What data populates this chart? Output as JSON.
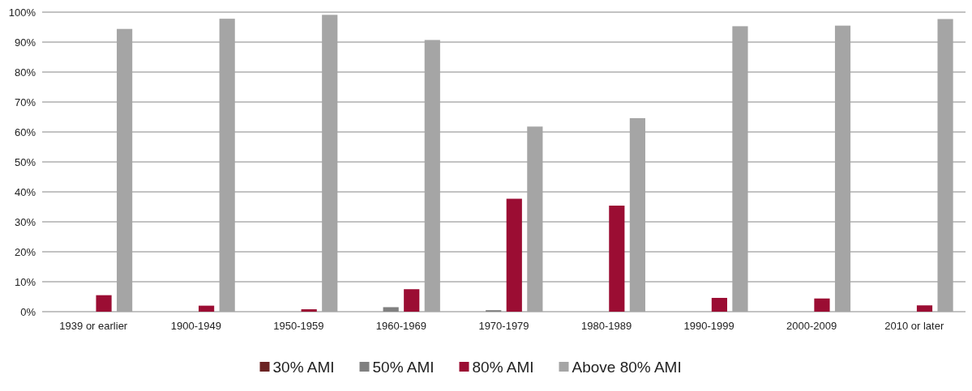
{
  "chart_data": {
    "type": "bar",
    "categories": [
      "1939 or earlier",
      "1900-1949",
      "1950-1959",
      "1960-1969",
      "1970-1979",
      "1980-1989",
      "1990-1999",
      "2000-2009",
      "2010 or later"
    ],
    "series": [
      {
        "name": "30% AMI",
        "color": "#6b2323",
        "values": [
          0,
          0,
          0,
          0,
          0,
          0,
          0,
          0,
          0
        ]
      },
      {
        "name": "50% AMI",
        "color": "#808080",
        "values": [
          0,
          0,
          0,
          1.5,
          0.5,
          0,
          0,
          0,
          0
        ]
      },
      {
        "name": "80% AMI",
        "color": "#9b0d33",
        "values": [
          5.5,
          2,
          0.8,
          7.5,
          37.7,
          35.4,
          4.6,
          4.4,
          2.1
        ]
      },
      {
        "name": "Above 80% AMI",
        "color": "#a5a5a5",
        "values": [
          94.4,
          97.8,
          99.1,
          90.7,
          61.8,
          64.6,
          95.3,
          95.5,
          97.7
        ]
      }
    ],
    "ylim": [
      0,
      100
    ],
    "yticks": [
      {
        "value": 0,
        "label": "0%"
      },
      {
        "value": 10,
        "label": "10%"
      },
      {
        "value": 20,
        "label": "20%"
      },
      {
        "value": 30,
        "label": "30%"
      },
      {
        "value": 40,
        "label": "40%"
      },
      {
        "value": 50,
        "label": "50%"
      },
      {
        "value": 60,
        "label": "60%"
      },
      {
        "value": 70,
        "label": "70%"
      },
      {
        "value": 80,
        "label": "80%"
      },
      {
        "value": 90,
        "label": "90%"
      },
      {
        "value": 100,
        "label": "100%"
      }
    ],
    "grid": "y",
    "legend": "bottom"
  }
}
